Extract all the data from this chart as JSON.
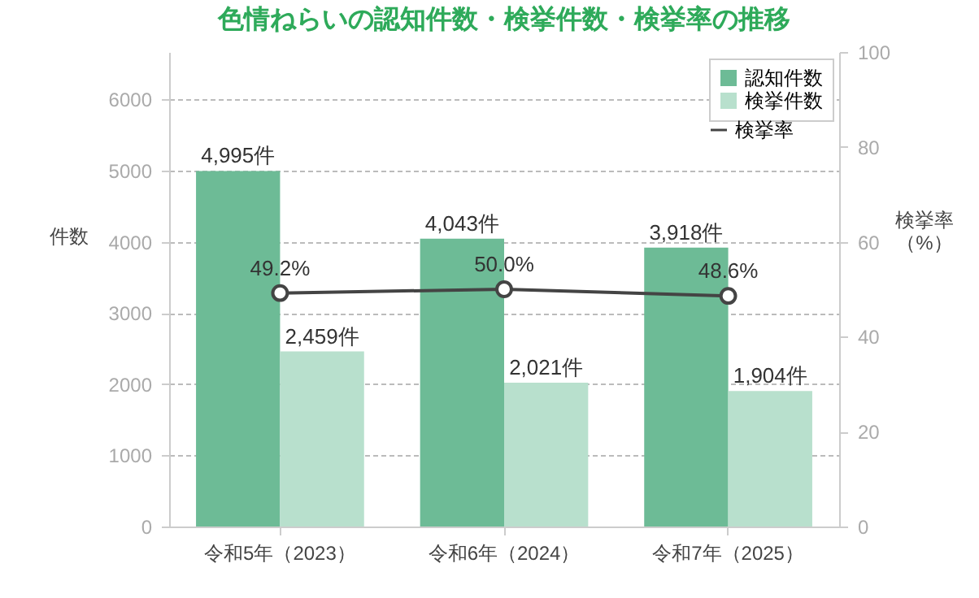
{
  "chart_data": {
    "type": "bar",
    "title": "色情ねらいの認知件数・検挙件数・検挙率の推移",
    "categories": [
      "令和5年（2023）",
      "令和6年（2024）",
      "令和7年（2025）"
    ],
    "series": [
      {
        "name": "認知件数",
        "color": "#6dbb96",
        "values": [
          4995,
          4043,
          3918
        ],
        "value_labels": [
          "4,995件",
          "4,043件",
          "3,918件"
        ]
      },
      {
        "name": "検挙件数",
        "color": "#b8e0cd",
        "values": [
          2459,
          2021,
          1904
        ],
        "value_labels": [
          "2,459件",
          "2,021件",
          "1,904件"
        ]
      },
      {
        "name": "検挙率",
        "type": "line",
        "axis": "y2",
        "color": "#444444",
        "marker": "circle",
        "values": [
          49.2,
          50.0,
          48.6
        ],
        "value_labels": [
          "49.2%",
          "50.0%",
          "48.6%"
        ]
      }
    ],
    "ylabel": "件数",
    "y2label": "検挙率（%）",
    "ylim": [
      0,
      6667
    ],
    "yticks": [
      0,
      1000,
      2000,
      3000,
      4000,
      5000,
      6000
    ],
    "y2lim": [
      0,
      100
    ],
    "y2ticks": [
      0,
      20,
      40,
      60,
      80,
      100
    ],
    "grid": "y",
    "legend": "top right"
  }
}
